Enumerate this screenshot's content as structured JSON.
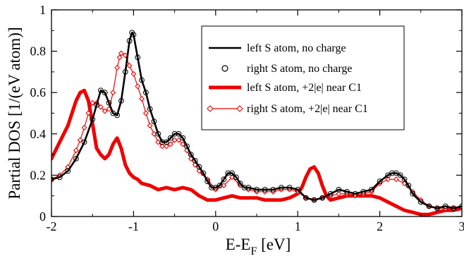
{
  "chart_data": {
    "type": "line",
    "title": "",
    "xlabel": "E-E",
    "xlabel_sub": "F",
    "xlabel_unit": " [eV]",
    "ylabel": "Partial DOS [1/(eV atom)]",
    "xlim": [
      -2,
      3
    ],
    "ylim": [
      0,
      1
    ],
    "x_ticks": [
      -2,
      -1,
      0,
      1,
      2,
      3
    ],
    "x_tick_labels": [
      "-2",
      "-1",
      "0",
      "1",
      "2",
      "3"
    ],
    "y_ticks": [
      0,
      0.2,
      0.4,
      0.6,
      0.8,
      1
    ],
    "y_tick_labels": [
      "0",
      "0.2",
      "0.4",
      "0.6",
      "0.8",
      "1"
    ],
    "grid": false,
    "legend_position": "top-right",
    "series": [
      {
        "name": "left S atom, no charge",
        "color": "#000000",
        "style": "solid",
        "marker": "none",
        "x": [
          -2.0,
          -1.9,
          -1.8,
          -1.7,
          -1.6,
          -1.5,
          -1.45,
          -1.4,
          -1.35,
          -1.3,
          -1.25,
          -1.2,
          -1.15,
          -1.1,
          -1.05,
          -1.02,
          -1.0,
          -0.95,
          -0.9,
          -0.85,
          -0.8,
          -0.75,
          -0.7,
          -0.65,
          -0.6,
          -0.55,
          -0.5,
          -0.45,
          -0.4,
          -0.35,
          -0.3,
          -0.25,
          -0.2,
          -0.15,
          -0.1,
          -0.05,
          0.0,
          0.05,
          0.1,
          0.15,
          0.2,
          0.25,
          0.3,
          0.35,
          0.4,
          0.5,
          0.6,
          0.7,
          0.8,
          0.9,
          1.0,
          1.1,
          1.2,
          1.3,
          1.4,
          1.5,
          1.6,
          1.7,
          1.8,
          1.9,
          2.0,
          2.1,
          2.15,
          2.2,
          2.25,
          2.3,
          2.35,
          2.4,
          2.5,
          2.6,
          2.7,
          2.8,
          2.9,
          3.0
        ],
        "y": [
          0.18,
          0.19,
          0.22,
          0.28,
          0.36,
          0.47,
          0.54,
          0.61,
          0.6,
          0.55,
          0.5,
          0.49,
          0.56,
          0.7,
          0.85,
          0.89,
          0.88,
          0.77,
          0.66,
          0.6,
          0.52,
          0.46,
          0.4,
          0.36,
          0.36,
          0.38,
          0.4,
          0.4,
          0.38,
          0.34,
          0.3,
          0.27,
          0.24,
          0.21,
          0.17,
          0.14,
          0.14,
          0.15,
          0.18,
          0.21,
          0.21,
          0.19,
          0.16,
          0.14,
          0.14,
          0.13,
          0.13,
          0.13,
          0.14,
          0.14,
          0.13,
          0.09,
          0.08,
          0.09,
          0.11,
          0.13,
          0.12,
          0.11,
          0.12,
          0.13,
          0.17,
          0.2,
          0.21,
          0.21,
          0.2,
          0.18,
          0.15,
          0.11,
          0.07,
          0.05,
          0.04,
          0.05,
          0.04,
          0.05
        ]
      },
      {
        "name": "right S atom, no charge",
        "color": "#000000",
        "style": "none",
        "marker": "circle",
        "x": [
          -2.0,
          -1.9,
          -1.8,
          -1.7,
          -1.6,
          -1.5,
          -1.45,
          -1.4,
          -1.35,
          -1.3,
          -1.25,
          -1.2,
          -1.15,
          -1.1,
          -1.05,
          -1.02,
          -1.0,
          -0.95,
          -0.9,
          -0.85,
          -0.8,
          -0.75,
          -0.7,
          -0.65,
          -0.6,
          -0.55,
          -0.5,
          -0.45,
          -0.4,
          -0.35,
          -0.3,
          -0.25,
          -0.2,
          -0.15,
          -0.1,
          -0.05,
          0.0,
          0.05,
          0.1,
          0.15,
          0.2,
          0.25,
          0.3,
          0.35,
          0.4,
          0.5,
          0.6,
          0.7,
          0.8,
          0.9,
          1.0,
          1.1,
          1.2,
          1.3,
          1.4,
          1.5,
          1.6,
          1.7,
          1.8,
          1.9,
          2.0,
          2.1,
          2.15,
          2.2,
          2.25,
          2.3,
          2.35,
          2.4,
          2.5,
          2.6,
          2.7,
          2.8,
          2.9,
          3.0
        ],
        "y": [
          0.18,
          0.19,
          0.22,
          0.28,
          0.36,
          0.47,
          0.54,
          0.61,
          0.6,
          0.55,
          0.5,
          0.49,
          0.56,
          0.7,
          0.85,
          0.89,
          0.88,
          0.77,
          0.66,
          0.6,
          0.52,
          0.46,
          0.4,
          0.36,
          0.36,
          0.38,
          0.4,
          0.4,
          0.38,
          0.34,
          0.3,
          0.27,
          0.24,
          0.21,
          0.17,
          0.14,
          0.14,
          0.15,
          0.18,
          0.21,
          0.21,
          0.19,
          0.16,
          0.14,
          0.14,
          0.13,
          0.13,
          0.13,
          0.14,
          0.14,
          0.13,
          0.09,
          0.08,
          0.09,
          0.11,
          0.13,
          0.12,
          0.11,
          0.12,
          0.13,
          0.17,
          0.2,
          0.21,
          0.21,
          0.2,
          0.18,
          0.15,
          0.11,
          0.07,
          0.05,
          0.04,
          0.05,
          0.04,
          0.05
        ]
      },
      {
        "name": "left S atom, +2|e| near C1",
        "color": "#ee0000",
        "style": "solid",
        "marker": "none",
        "x": [
          -2.0,
          -1.9,
          -1.8,
          -1.7,
          -1.65,
          -1.6,
          -1.55,
          -1.5,
          -1.45,
          -1.4,
          -1.35,
          -1.3,
          -1.25,
          -1.2,
          -1.15,
          -1.1,
          -1.05,
          -1.0,
          -0.95,
          -0.9,
          -0.8,
          -0.7,
          -0.6,
          -0.5,
          -0.4,
          -0.3,
          -0.2,
          -0.1,
          0.0,
          0.1,
          0.2,
          0.3,
          0.4,
          0.5,
          0.6,
          0.7,
          0.8,
          0.9,
          1.0,
          1.05,
          1.1,
          1.15,
          1.2,
          1.25,
          1.3,
          1.35,
          1.4,
          1.5,
          1.6,
          1.7,
          1.8,
          1.9,
          2.0,
          2.1,
          2.2,
          2.3,
          2.4,
          2.5,
          2.6,
          2.7,
          2.8,
          2.9,
          3.0
        ],
        "y": [
          0.28,
          0.36,
          0.44,
          0.56,
          0.6,
          0.61,
          0.56,
          0.45,
          0.33,
          0.3,
          0.28,
          0.3,
          0.35,
          0.38,
          0.33,
          0.25,
          0.21,
          0.19,
          0.18,
          0.16,
          0.15,
          0.13,
          0.14,
          0.13,
          0.14,
          0.13,
          0.1,
          0.08,
          0.08,
          0.09,
          0.1,
          0.09,
          0.09,
          0.09,
          0.08,
          0.08,
          0.08,
          0.09,
          0.11,
          0.14,
          0.19,
          0.23,
          0.24,
          0.21,
          0.15,
          0.1,
          0.08,
          0.09,
          0.1,
          0.1,
          0.1,
          0.1,
          0.09,
          0.07,
          0.05,
          0.03,
          0.02,
          0.01,
          0.01,
          0.02,
          0.03,
          0.03,
          0.04
        ]
      },
      {
        "name": "right S atom, +2|e| near C1",
        "color": "#ee0000",
        "style": "solid-thin",
        "marker": "diamond",
        "x": [
          -2.0,
          -1.9,
          -1.8,
          -1.7,
          -1.65,
          -1.6,
          -1.55,
          -1.5,
          -1.45,
          -1.4,
          -1.35,
          -1.3,
          -1.25,
          -1.2,
          -1.17,
          -1.15,
          -1.1,
          -1.05,
          -1.0,
          -0.95,
          -0.9,
          -0.85,
          -0.8,
          -0.75,
          -0.7,
          -0.65,
          -0.6,
          -0.55,
          -0.5,
          -0.45,
          -0.4,
          -0.35,
          -0.3,
          -0.25,
          -0.2,
          -0.1,
          0.0,
          0.1,
          0.2,
          0.3,
          0.4,
          0.5,
          0.6,
          0.7,
          0.8,
          0.9,
          1.0,
          1.1,
          1.2,
          1.3,
          1.4,
          1.5,
          1.6,
          1.7,
          1.8,
          1.9,
          2.0,
          2.1,
          2.2,
          2.3,
          2.4,
          2.5,
          2.6,
          2.7,
          2.8,
          2.9,
          3.0
        ],
        "y": [
          0.18,
          0.2,
          0.24,
          0.32,
          0.37,
          0.43,
          0.5,
          0.55,
          0.55,
          0.53,
          0.51,
          0.52,
          0.6,
          0.72,
          0.77,
          0.79,
          0.78,
          0.73,
          0.69,
          0.63,
          0.57,
          0.5,
          0.44,
          0.4,
          0.36,
          0.34,
          0.34,
          0.35,
          0.37,
          0.37,
          0.35,
          0.32,
          0.28,
          0.25,
          0.22,
          0.18,
          0.13,
          0.15,
          0.19,
          0.15,
          0.13,
          0.12,
          0.12,
          0.12,
          0.13,
          0.13,
          0.12,
          0.09,
          0.08,
          0.09,
          0.1,
          0.11,
          0.11,
          0.1,
          0.11,
          0.12,
          0.16,
          0.18,
          0.18,
          0.16,
          0.12,
          0.08,
          0.05,
          0.04,
          0.04,
          0.04,
          0.04
        ]
      }
    ]
  }
}
